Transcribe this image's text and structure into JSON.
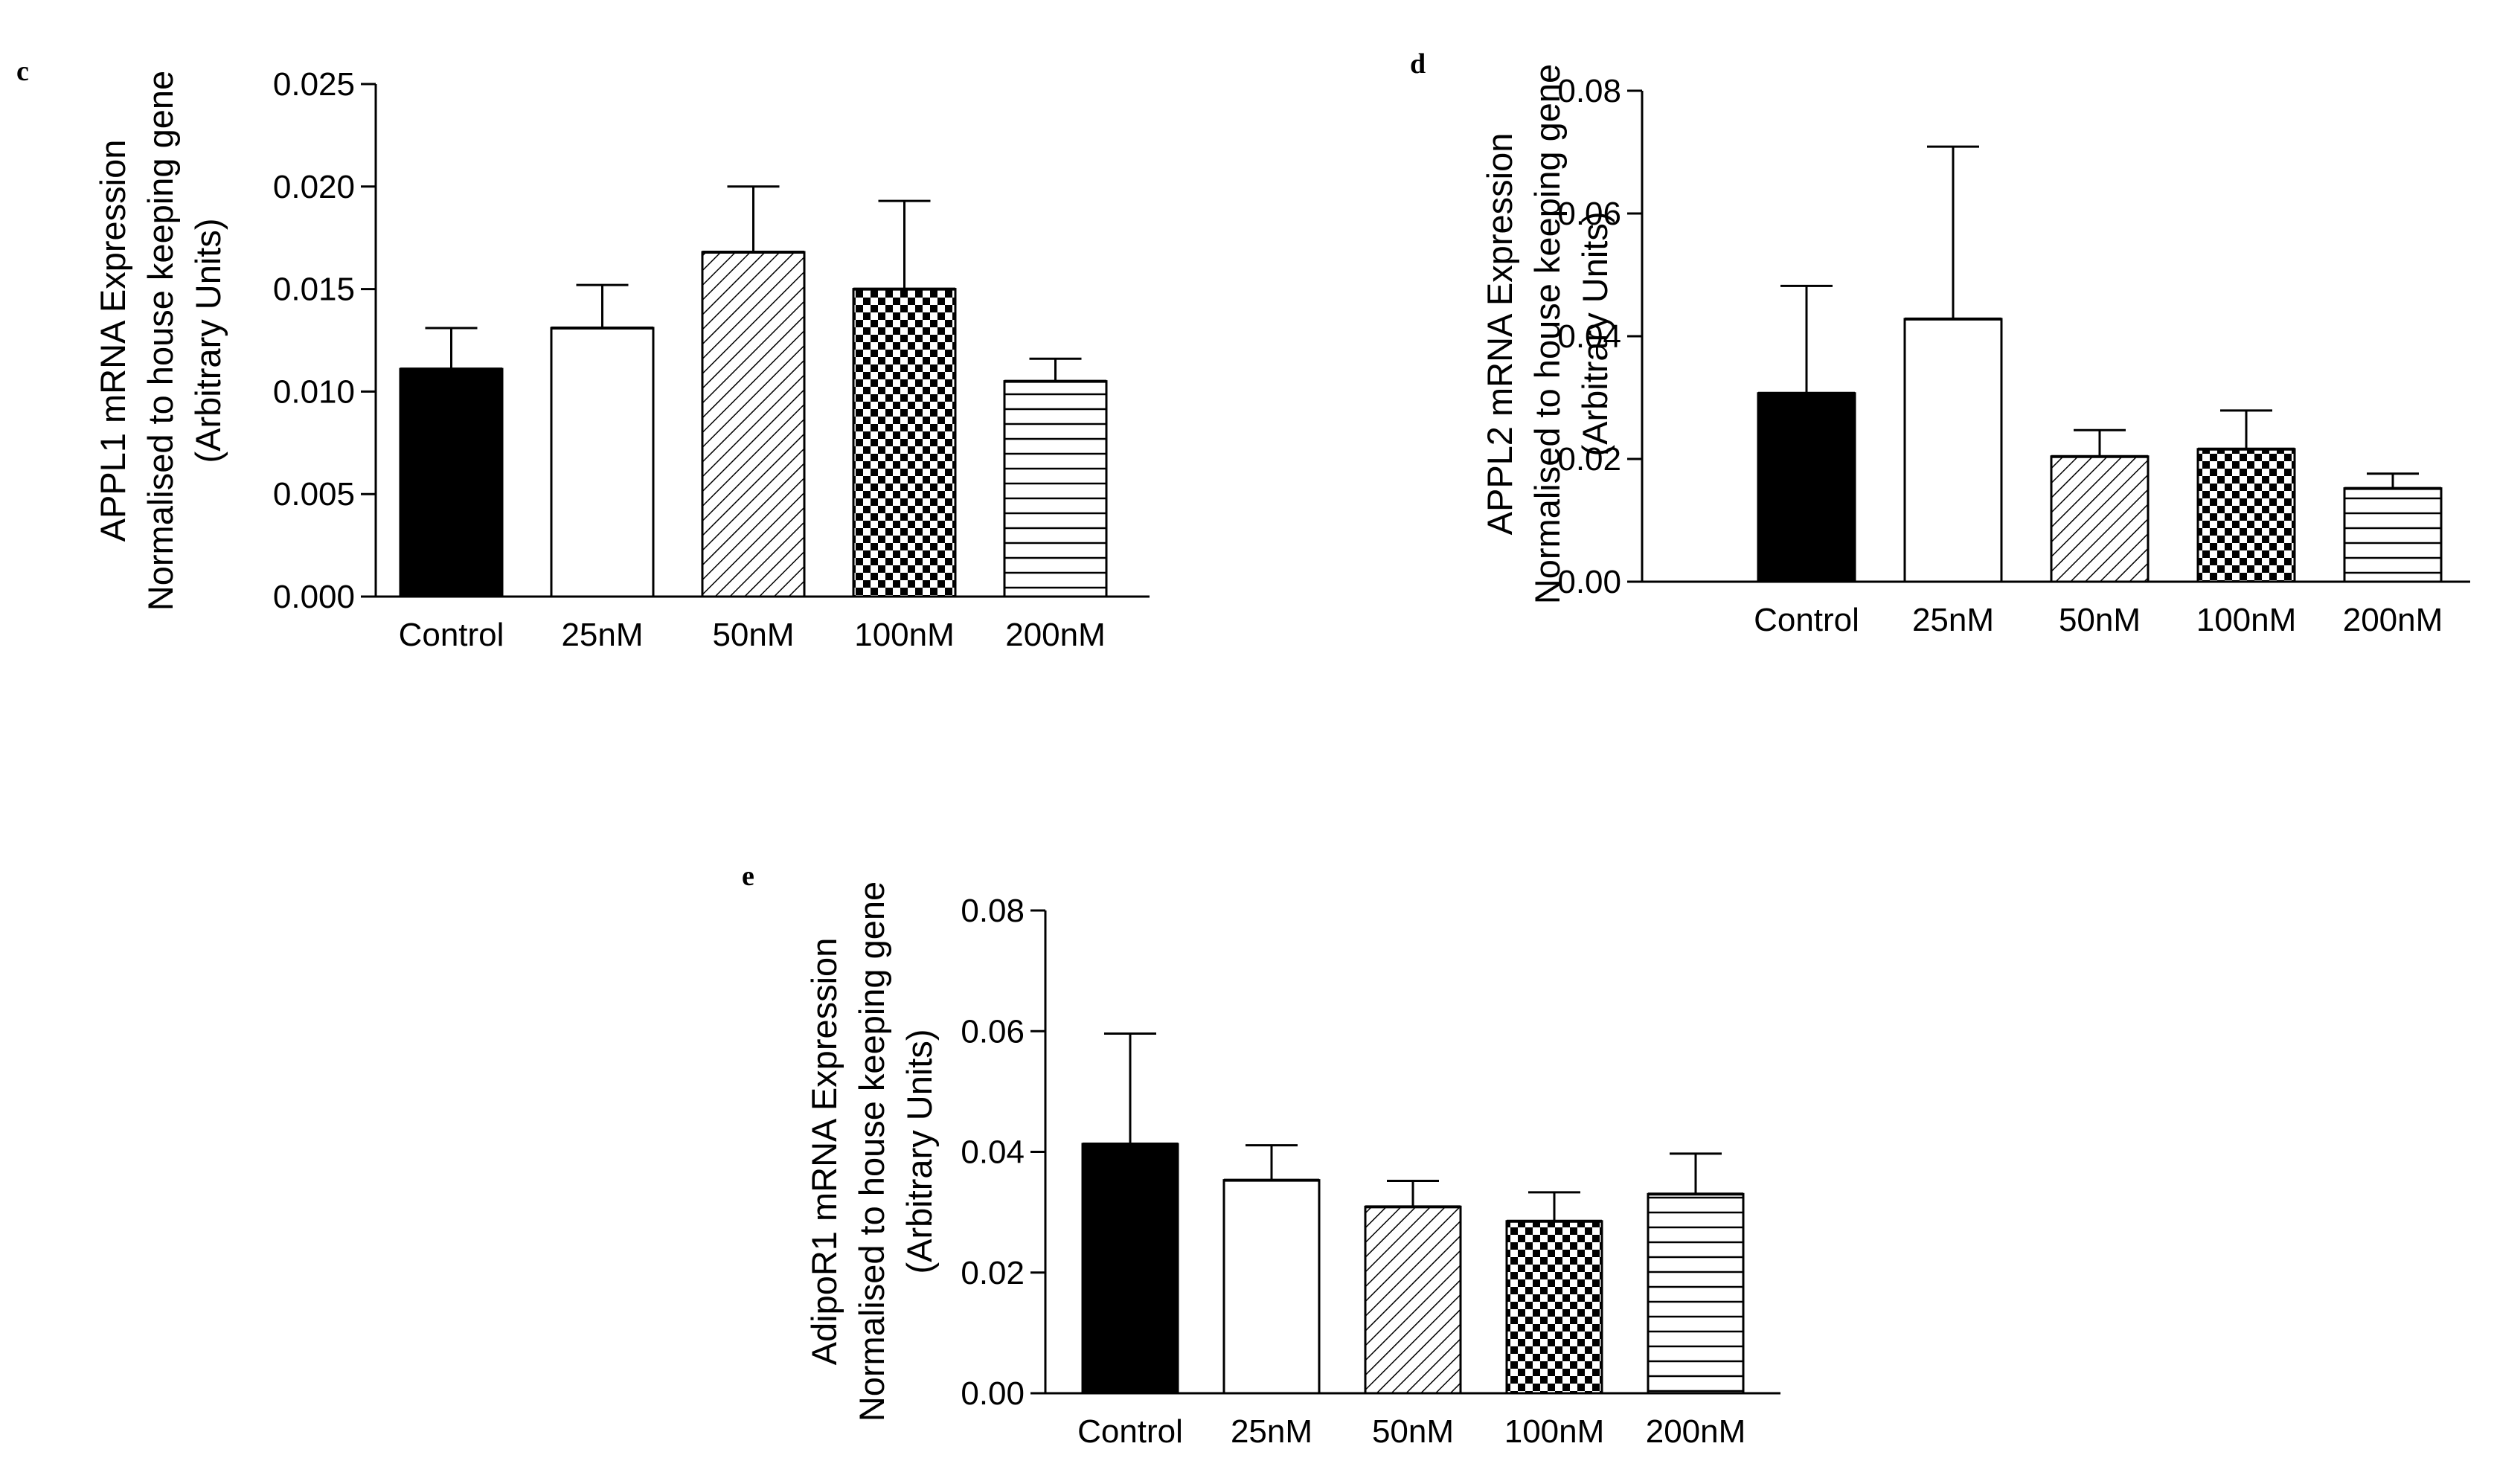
{
  "chart_data": [
    {
      "panel": "c",
      "type": "bar",
      "categories": [
        "Control",
        "25nM",
        "50nM",
        "100nM",
        "200nM"
      ],
      "values": [
        0.0111,
        0.0131,
        0.0168,
        0.015,
        0.0105
      ],
      "errors": [
        0.002,
        0.0021,
        0.0032,
        0.0043,
        0.0011
      ],
      "ylabel_lines": [
        "APPL1 mRNA Expression",
        "Normalised to house keeping gene",
        "(Arbitrary Units)"
      ],
      "ylim": [
        0,
        0.025
      ],
      "yticks": [
        "0.000",
        "0.005",
        "0.010",
        "0.015",
        "0.020",
        "0.025"
      ],
      "bar_fills": [
        "solid-black",
        "white",
        "diagonal-hatch",
        "checkerboard",
        "horizontal-lines"
      ]
    },
    {
      "panel": "d",
      "type": "bar",
      "categories": [
        "Control",
        "25nM",
        "50nM",
        "100nM",
        "200nM"
      ],
      "values": [
        0.0307,
        0.0428,
        0.0204,
        0.0216,
        0.0152
      ],
      "errors": [
        0.0175,
        0.0281,
        0.0043,
        0.0063,
        0.0024
      ],
      "ylabel_lines": [
        "APPL2 mRNA Expression",
        "Normalised to house keeping gene",
        "(Arbitrary Units)"
      ],
      "ylim": [
        0,
        0.08
      ],
      "yticks": [
        "0.00",
        "0.02",
        "0.04",
        "0.06",
        "0.08"
      ],
      "bar_fills": [
        "solid-black",
        "white",
        "diagonal-hatch",
        "checkerboard",
        "horizontal-lines"
      ]
    },
    {
      "panel": "e",
      "type": "bar",
      "categories": [
        "Control",
        "25nM",
        "50nM",
        "100nM",
        "200nM"
      ],
      "values": [
        0.0413,
        0.0353,
        0.0309,
        0.0285,
        0.033
      ],
      "errors": [
        0.0183,
        0.0058,
        0.0043,
        0.0048,
        0.0067
      ],
      "ylabel_lines": [
        "AdipoR1 mRNA Expression",
        "Normalised to house keeping gene",
        "(Arbitrary Units)"
      ],
      "ylim": [
        0,
        0.08
      ],
      "yticks": [
        "0.00",
        "0.02",
        "0.04",
        "0.06",
        "0.08"
      ],
      "bar_fills": [
        "solid-black",
        "white",
        "diagonal-hatch",
        "checkerboard",
        "horizontal-lines"
      ]
    }
  ]
}
